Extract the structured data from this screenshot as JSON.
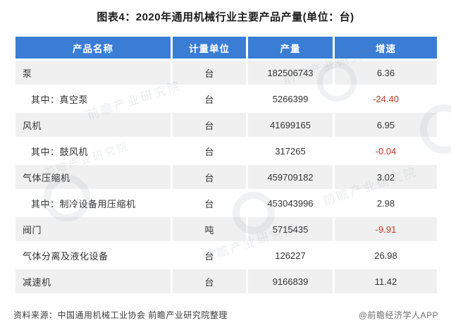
{
  "page": {
    "title": "图表4：2020年通用机械行业主要产品产量(单位：台)",
    "source_note": "资料来源：中国通用机械工业协会 前瞻产业研究院整理",
    "credit": "@前瞻经济学人APP",
    "watermark_text": "前瞻产业研究院"
  },
  "colors": {
    "header_bg": "#3a7dd5",
    "row_alt_bg": "#f0f0f0",
    "negative_value": "#c0392b",
    "body_text": "#333333"
  },
  "table": {
    "headers": [
      "产品名称",
      "计量单位",
      "产量",
      "增速"
    ],
    "rows": [
      {
        "name": "泵",
        "indent": false,
        "unit": "台",
        "output": "182506743",
        "growth": "6.36"
      },
      {
        "name": "其中：真空泵",
        "indent": true,
        "unit": "台",
        "output": "5266399",
        "growth": "-24.40"
      },
      {
        "name": "风机",
        "indent": false,
        "unit": "台",
        "output": "41699165",
        "growth": "6.95"
      },
      {
        "name": "其中：鼓风机",
        "indent": true,
        "unit": "台",
        "output": "317265",
        "growth": "-0.04"
      },
      {
        "name": "气体压缩机",
        "indent": false,
        "unit": "台",
        "output": "459709182",
        "growth": "3.02"
      },
      {
        "name": "其中：制冷设备用压缩机",
        "indent": true,
        "unit": "台",
        "output": "453043996",
        "growth": "2.98"
      },
      {
        "name": "阀门",
        "indent": false,
        "unit": "吨",
        "output": "5715435",
        "growth": "-9.91"
      },
      {
        "name": "气体分离及液化设备",
        "indent": false,
        "unit": "台",
        "output": "126227",
        "growth": "26.98"
      },
      {
        "name": "减速机",
        "indent": false,
        "unit": "台",
        "output": "9166839",
        "growth": "11.42"
      }
    ]
  },
  "chart_data": {
    "type": "table",
    "title": "图表4：2020年通用机械行业主要产品产量(单位：台)",
    "columns": [
      "产品名称",
      "计量单位",
      "产量",
      "增速"
    ],
    "rows": [
      [
        "泵",
        "台",
        182506743,
        6.36
      ],
      [
        "其中：真空泵",
        "台",
        5266399,
        -24.4
      ],
      [
        "风机",
        "台",
        41699165,
        6.95
      ],
      [
        "其中：鼓风机",
        "台",
        317265,
        -0.04
      ],
      [
        "气体压缩机",
        "台",
        459709182,
        3.02
      ],
      [
        "其中：制冷设备用压缩机",
        "台",
        453043996,
        2.98
      ],
      [
        "阀门",
        "吨",
        5715435,
        -9.91
      ],
      [
        "气体分离及液化设备",
        "台",
        126227,
        26.98
      ],
      [
        "减速机",
        "台",
        9166839,
        11.42
      ]
    ],
    "notes": {
      "negative_values_shown_in_red": [
        -24.4,
        -0.04,
        -9.91
      ],
      "source": "资料来源：中国通用机械工业协会 前瞻产业研究院整理",
      "credit": "@前瞻经济学人APP"
    }
  }
}
